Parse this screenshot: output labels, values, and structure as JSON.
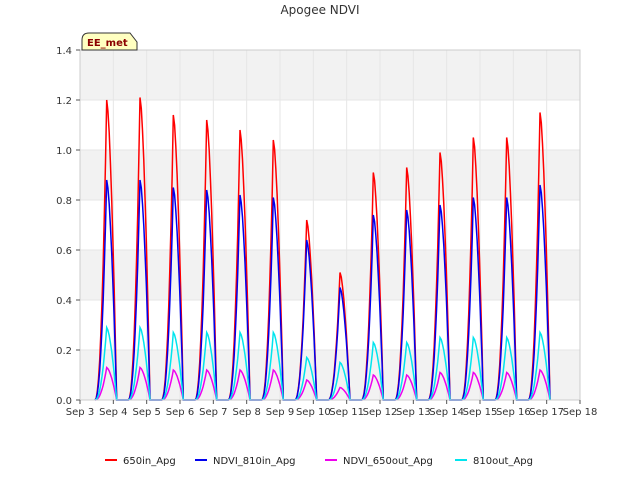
{
  "chart_data": {
    "type": "line",
    "title": "Apogee NDVI",
    "badge": "EE_met",
    "xlabel": "",
    "ylabel": "",
    "xlim": [
      3,
      18
    ],
    "ylim": [
      0,
      1.4
    ],
    "x_ticks": [
      3,
      4,
      5,
      6,
      7,
      8,
      9,
      10,
      11,
      12,
      13,
      14,
      15,
      16,
      17,
      18
    ],
    "x_tick_labels": [
      "Sep 3",
      "Sep 4",
      "Sep 5",
      "Sep 6",
      "Sep 7",
      "Sep 8",
      "Sep 9",
      "Sep 10",
      "Sep 11",
      "Sep 12",
      "Sep 13",
      "Sep 14",
      "Sep 15",
      "Sep 16",
      "Sep 17",
      "Sep 18"
    ],
    "y_ticks": [
      0.0,
      0.2,
      0.4,
      0.6,
      0.8,
      1.0,
      1.2,
      1.4
    ],
    "y_tick_labels": [
      "0.0",
      "0.2",
      "0.4",
      "0.6",
      "0.8",
      "1.0",
      "1.2",
      "1.4"
    ],
    "grid": true,
    "band_colors": [
      "#f2f2f2",
      "#ffffff"
    ],
    "legend_position": "bottom",
    "series": [
      {
        "name": "650in_Apg",
        "color": "#ff0000",
        "peaks": [
          [
            3.8,
            1.2
          ],
          [
            4.8,
            1.21
          ],
          [
            5.8,
            1.14
          ],
          [
            6.8,
            1.12
          ],
          [
            7.8,
            1.08
          ],
          [
            8.8,
            1.04
          ],
          [
            9.8,
            0.72
          ],
          [
            10.8,
            0.51
          ],
          [
            11.8,
            0.91
          ],
          [
            12.8,
            0.93
          ],
          [
            13.8,
            0.99
          ],
          [
            14.8,
            1.05
          ],
          [
            15.8,
            1.05
          ],
          [
            16.8,
            1.15
          ]
        ]
      },
      {
        "name": "NDVI_810in_Apg",
        "color": "#0000ee",
        "peaks": [
          [
            3.8,
            0.88
          ],
          [
            4.8,
            0.88
          ],
          [
            5.8,
            0.85
          ],
          [
            6.8,
            0.84
          ],
          [
            7.8,
            0.82
          ],
          [
            8.8,
            0.81
          ],
          [
            9.8,
            0.64
          ],
          [
            10.8,
            0.45
          ],
          [
            11.8,
            0.74
          ],
          [
            12.8,
            0.76
          ],
          [
            13.8,
            0.78
          ],
          [
            14.8,
            0.81
          ],
          [
            15.8,
            0.81
          ],
          [
            16.8,
            0.86
          ]
        ]
      },
      {
        "name": "NDVI_650out_Apg",
        "color": "#ee00ee",
        "peaks": [
          [
            3.8,
            0.13
          ],
          [
            4.8,
            0.13
          ],
          [
            5.8,
            0.12
          ],
          [
            6.8,
            0.12
          ],
          [
            7.8,
            0.12
          ],
          [
            8.8,
            0.12
          ],
          [
            9.8,
            0.08
          ],
          [
            10.8,
            0.05
          ],
          [
            11.8,
            0.1
          ],
          [
            12.8,
            0.1
          ],
          [
            13.8,
            0.11
          ],
          [
            14.8,
            0.11
          ],
          [
            15.8,
            0.11
          ],
          [
            16.8,
            0.12
          ]
        ]
      },
      {
        "name": "810out_Apg",
        "color": "#00e5ee",
        "peaks": [
          [
            3.8,
            0.29
          ],
          [
            4.8,
            0.29
          ],
          [
            5.8,
            0.27
          ],
          [
            6.8,
            0.27
          ],
          [
            7.8,
            0.27
          ],
          [
            8.8,
            0.27
          ],
          [
            9.8,
            0.17
          ],
          [
            10.8,
            0.15
          ],
          [
            11.8,
            0.23
          ],
          [
            12.8,
            0.23
          ],
          [
            13.8,
            0.25
          ],
          [
            14.8,
            0.25
          ],
          [
            15.8,
            0.25
          ],
          [
            16.8,
            0.27
          ]
        ]
      }
    ]
  }
}
